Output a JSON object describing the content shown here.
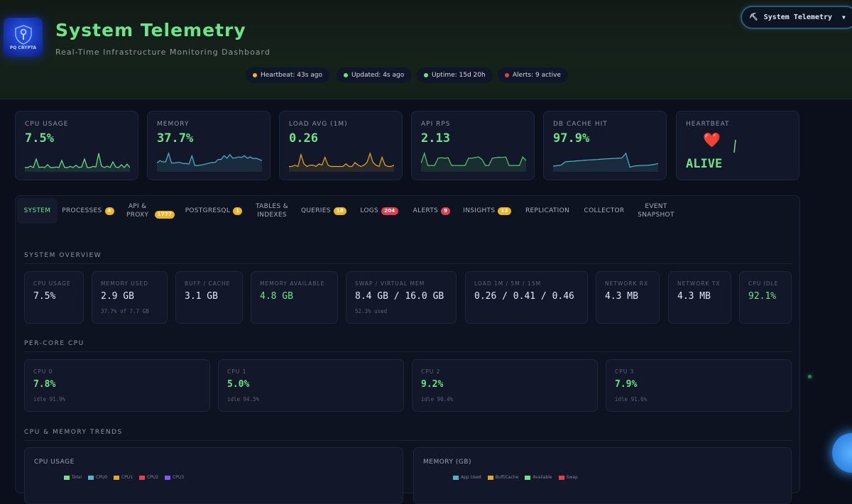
{
  "header": {
    "logo_text": "PQ CRYPTA",
    "title": "System Telemetry",
    "subtitle": "Real-Time Infrastructure Monitoring Dashboard",
    "pills": [
      {
        "label": "Heartbeat: 43s ago",
        "color": "#f0b429"
      },
      {
        "label": "Updated: 4s ago",
        "color": "#6ee38a"
      },
      {
        "label": "Uptime: 15d 20h",
        "color": "#6ee38a"
      },
      {
        "label": "Alerts: 9 active",
        "color": "#e0404f"
      }
    ],
    "dropdown": {
      "icon": "robot-icon",
      "label": "System Telemetry",
      "caret": "▼"
    }
  },
  "metrics": [
    {
      "label": "CPU USAGE",
      "value": "7.5%",
      "color": "#6ee38a",
      "spark": [
        1,
        1,
        1.5,
        1,
        4,
        1,
        1.2,
        1,
        2,
        1,
        1,
        1.2,
        1,
        3.5,
        1,
        1,
        1.4,
        1,
        1.8,
        1,
        1.2,
        4,
        1,
        1,
        1.4,
        1.2,
        6,
        1.5,
        1,
        1.5,
        1,
        3,
        1.2,
        1,
        2,
        1,
        2.2,
        1
      ]
    },
    {
      "label": "MEMORY",
      "value": "37.7%",
      "color": "#4fb3c9",
      "spark": [
        3,
        4,
        3.5,
        3.5,
        7,
        3,
        3,
        3.3,
        3.2,
        2.8,
        2.8,
        2.6,
        6,
        2,
        2,
        2.2,
        2.4,
        2.7,
        3,
        3.2,
        3.3,
        4.5,
        4.5,
        6,
        5,
        6.5,
        5,
        5.2,
        5.5,
        5.3,
        6,
        5,
        5.5,
        4.8,
        5,
        4.5,
        4
      ]
    },
    {
      "label": "LOAD AVG (1M)",
      "value": "0.26",
      "color": "#e0a82a",
      "spark": [
        1.5,
        1.5,
        2,
        1.5,
        6,
        2.5,
        1.5,
        2,
        2,
        1.5,
        2.5,
        2,
        5,
        2,
        1.5,
        1.5,
        1.5,
        1.5,
        1.5,
        2.5,
        1.5,
        1.5,
        3,
        2,
        1.5,
        2,
        3,
        6.5,
        3,
        2,
        1.5,
        5,
        2,
        1.5,
        1.5,
        2
      ]
    },
    {
      "label": "API RPS",
      "value": "2.13",
      "color": "#58c96f",
      "spark": [
        3,
        7,
        2,
        2,
        2,
        5,
        5.2,
        5,
        5.2,
        2,
        2,
        2,
        2,
        2,
        5,
        5,
        5.3,
        5.5,
        4.5,
        2,
        2,
        5,
        5.2,
        5.4,
        5.3,
        5.5,
        2,
        2,
        2,
        2,
        5.5,
        4
      ]
    },
    {
      "label": "DB CACHE HIT",
      "value": "97.9%",
      "color": "#4fb3c9",
      "spark": [
        2,
        2.2,
        2.5,
        4,
        4.2,
        4.3,
        4.5,
        4.6,
        4.8,
        4.9,
        5,
        5.1,
        5.3,
        5.4,
        5.5,
        5.6,
        5.7,
        5.8,
        8,
        1.5,
        2,
        2.2,
        2.3,
        2.4,
        2.5,
        2.8,
        3.2
      ]
    },
    {
      "label": "HEARTBEAT",
      "value": "ALIVE",
      "icon": "heart-icon",
      "glyph": "❤️"
    }
  ],
  "tabs": [
    {
      "label": "SYSTEM",
      "active": true
    },
    {
      "label": "PROCESSES",
      "badge": "4",
      "badge_color": "yellow"
    },
    {
      "label": "API & PROXY",
      "badge": "1777",
      "badge_color": "yellow"
    },
    {
      "label": "POSTGRESQL",
      "badge": "1",
      "badge_color": "yellow"
    },
    {
      "label": "TABLES & INDEXES"
    },
    {
      "label": "QUERIES",
      "badge": "18",
      "badge_color": "yellow"
    },
    {
      "label": "LOGS",
      "badge": "204",
      "badge_color": "red"
    },
    {
      "label": "ALERTS",
      "badge": "9",
      "badge_color": "red"
    },
    {
      "label": "INSIGHTS",
      "badge": "13",
      "badge_color": "yellow"
    },
    {
      "label": "REPLICATION"
    },
    {
      "label": "COLLECTOR"
    },
    {
      "label": "EVENT SNAPSHOT"
    }
  ],
  "overview": {
    "title": "SYSTEM OVERVIEW",
    "stats": [
      {
        "label": "CPU USAGE",
        "value": "7.5%"
      },
      {
        "label": "MEMORY USED",
        "value": "2.9 GB",
        "sub": "37.7% of 7.7 GB"
      },
      {
        "label": "BUFF / CACHE",
        "value": "3.1 GB"
      },
      {
        "label": "MEMORY AVAILABLE",
        "value": "4.8 GB",
        "highlight": true
      },
      {
        "label": "SWAP / VIRTUAL MEM",
        "value": "8.4 GB / 16.0 GB",
        "sub": "52.3% used"
      },
      {
        "label": "LOAD 1M / 5M / 15M",
        "value": "0.26 / 0.41 / 0.46"
      },
      {
        "label": "NETWORK RX",
        "value": "4.3 MB"
      },
      {
        "label": "NETWORK TX",
        "value": "4.3 MB"
      },
      {
        "label": "CPU IDLE",
        "value": "92.1%",
        "highlight": true
      }
    ]
  },
  "per_core": {
    "title": "PER-CORE CPU",
    "cores": [
      {
        "label": "CPU 0",
        "value": "7.8%",
        "idle": "idle 91.9%"
      },
      {
        "label": "CPU 1",
        "value": "5.0%",
        "idle": "idle 94.5%"
      },
      {
        "label": "CPU 2",
        "value": "9.2%",
        "idle": "idle 90.4%"
      },
      {
        "label": "CPU 3",
        "value": "7.9%",
        "idle": "idle 91.6%"
      }
    ]
  },
  "trends": {
    "title": "CPU & MEMORY TRENDS",
    "cpu_chart": {
      "title": "CPU USAGE",
      "legend": [
        {
          "name": "Total",
          "color": "#6ee38a"
        },
        {
          "name": "CPU0",
          "color": "#4fb3c9"
        },
        {
          "name": "CPU1",
          "color": "#e0a82a"
        },
        {
          "name": "CPU2",
          "color": "#e0404f"
        },
        {
          "name": "CPU3",
          "color": "#7b5cf0"
        }
      ]
    },
    "mem_chart": {
      "title": "MEMORY (GB)",
      "legend": [
        {
          "name": "App Used",
          "color": "#4fb3c9"
        },
        {
          "name": "Buff/Cache",
          "color": "#e0a82a"
        },
        {
          "name": "Available",
          "color": "#6ee38a"
        },
        {
          "name": "Swap",
          "color": "#e0404f"
        }
      ]
    }
  }
}
